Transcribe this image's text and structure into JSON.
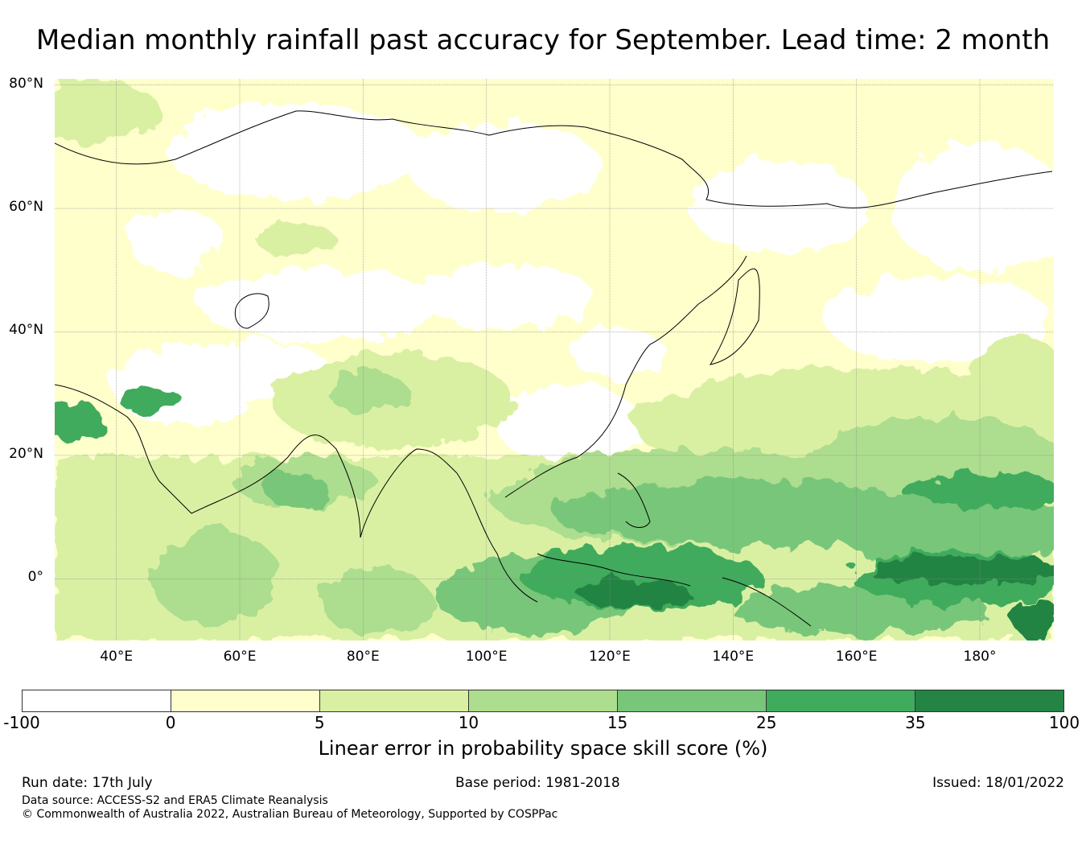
{
  "title": "Median monthly rainfall past accuracy for September. Lead time: 2 month",
  "map": {
    "lat_labels": [
      "80°N",
      "60°N",
      "40°N",
      "20°N",
      "0°"
    ],
    "lat_values": [
      80,
      60,
      40,
      20,
      0
    ],
    "lon_labels": [
      "40°E",
      "60°E",
      "80°E",
      "100°E",
      "120°E",
      "140°E",
      "160°E",
      "180°"
    ],
    "lon_values": [
      40,
      60,
      80,
      100,
      120,
      140,
      160,
      180
    ],
    "extent": {
      "lon_min": 30,
      "lon_max": 192,
      "lat_min": -10,
      "lat_max": 81
    }
  },
  "colorbar": {
    "label": "Linear error in probability space skill score (%)",
    "ticks": [
      "-100",
      "0",
      "5",
      "10",
      "15",
      "25",
      "35",
      "100"
    ],
    "colors": [
      "#ffffff",
      "#ffffcc",
      "#d9f0a3",
      "#addd8e",
      "#78c679",
      "#41ab5d",
      "#238443"
    ]
  },
  "footer": {
    "run_date": "Run date: 17th July",
    "base_period": "Base period: 1981-2018",
    "issued": "Issued: 18/01/2022",
    "data_source": "Data source: ACCESS-S2 and ERA5 Climate Reanalysis",
    "copyright": "© Commonwealth of Australia 2022, Australian Bureau of Meteorology, Supported by COSPPac"
  }
}
